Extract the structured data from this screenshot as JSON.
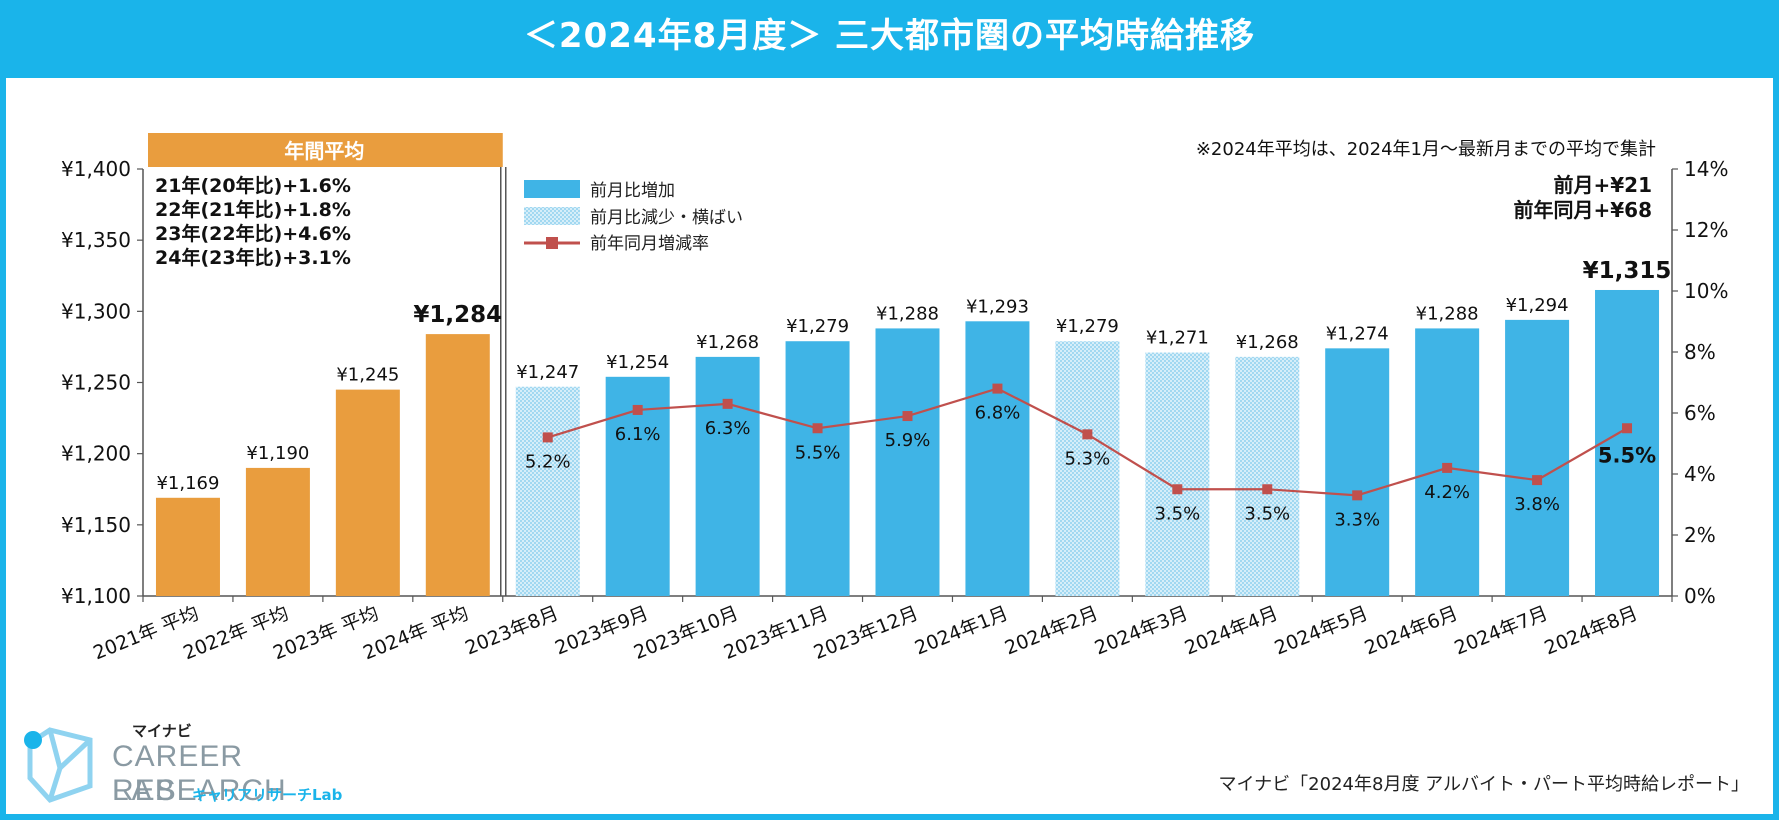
{
  "title": "＜2024年8月度＞ 三大都市圏の平均時給推移",
  "note": "※2024年平均は、2024年1月～最新月までの平均で集計",
  "annual_header": "年間平均",
  "annual_notes": [
    "21年(20年比)+1.6%",
    "22年(21年比)+1.8%",
    "23年(22年比)+4.6%",
    "24年(23年比)+3.1%"
  ],
  "legend": {
    "increase": "前月比増加",
    "decrease": "前月比減少・横ばい",
    "yoy": "前年同月増減率"
  },
  "summary": [
    "前月+¥21",
    "前年同月+¥68"
  ],
  "source": "マイナビ「2024年8月度 アルバイト・パート平均時給レポート」",
  "logo": {
    "top": "マイナビ",
    "main": "CAREER RESEARCH",
    "lab": "LAB",
    "sub": "キャリアリサーチLab"
  },
  "colors": {
    "title_bg": "#1ab4ea",
    "annual": "#e99d3e",
    "increase": "#3fb4e6",
    "decrease": "#bfe3f5",
    "line": "#c0504d"
  },
  "chart_data": {
    "type": "bar",
    "title": "＜2024年8月度＞ 三大都市圏の平均時給推移",
    "categories": [
      "2021年 平均",
      "2022年 平均",
      "2023年 平均",
      "2024年 平均",
      "2023年8月",
      "2023年9月",
      "2023年10月",
      "2023年11月",
      "2023年12月",
      "2024年1月",
      "2024年2月",
      "2024年3月",
      "2024年4月",
      "2024年5月",
      "2024年6月",
      "2024年7月",
      "2024年8月"
    ],
    "values": [
      1169,
      1190,
      1245,
      1284,
      1247,
      1254,
      1268,
      1279,
      1288,
      1293,
      1279,
      1271,
      1268,
      1274,
      1288,
      1294,
      1315
    ],
    "value_labels": [
      "¥1,169",
      "¥1,190",
      "¥1,245",
      "¥1,284",
      "¥1,247",
      "¥1,254",
      "¥1,268",
      "¥1,279",
      "¥1,288",
      "¥1,293",
      "¥1,279",
      "¥1,271",
      "¥1,268",
      "¥1,274",
      "¥1,288",
      "¥1,294",
      "¥1,315"
    ],
    "bar_kind": [
      "annual",
      "annual",
      "annual",
      "annual",
      "decrease",
      "increase",
      "increase",
      "increase",
      "increase",
      "increase",
      "decrease",
      "decrease",
      "decrease",
      "increase",
      "increase",
      "increase",
      "increase"
    ],
    "yoy_rate": [
      null,
      null,
      null,
      null,
      5.2,
      6.1,
      6.3,
      5.5,
      5.9,
      6.8,
      5.3,
      3.5,
      3.5,
      3.3,
      4.2,
      3.8,
      5.5
    ],
    "yoy_labels": [
      "",
      "",
      "",
      "",
      "5.2%",
      "6.1%",
      "6.3%",
      "5.5%",
      "5.9%",
      "6.8%",
      "5.3%",
      "3.5%",
      "3.5%",
      "3.3%",
      "4.2%",
      "3.8%",
      "5.5%"
    ],
    "ylim": [
      1100,
      1400
    ],
    "yticks": [
      "¥1,100",
      "¥1,150",
      "¥1,200",
      "¥1,250",
      "¥1,300",
      "¥1,350",
      "¥1,400"
    ],
    "y2lim": [
      0,
      14
    ],
    "y2ticks": [
      "0%",
      "2%",
      "4%",
      "6%",
      "8%",
      "10%",
      "12%",
      "14%"
    ]
  }
}
